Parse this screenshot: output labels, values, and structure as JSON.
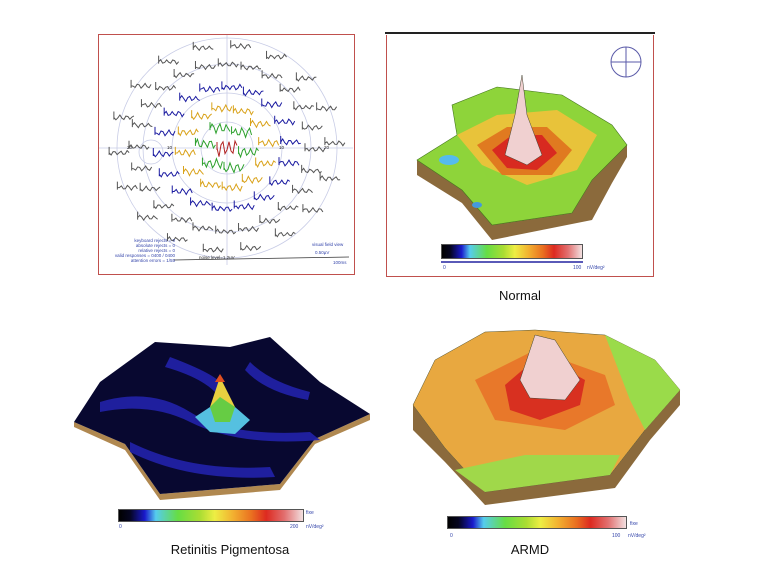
{
  "figure": {
    "panels": [
      {
        "id": "trace-array",
        "type": "mfERG trace array",
        "border_color": "#c0504d",
        "axis_labels": [
          "20",
          "10",
          "10",
          "20"
        ],
        "stats": [
          "keyboard rejects = 0",
          "absolute rejects = 0",
          "relative rejects = 0",
          "valid responses = 0400 / 0400",
          "attention errors = 1/55"
        ],
        "noise_level": "noise level=1.2uV",
        "view_label": "visual field view",
        "scale_amp": "0.50µV",
        "scale_time": "100ms"
      },
      {
        "id": "normal-3d",
        "caption": "Normal",
        "border_color": "#c0504d",
        "colorbar": {
          "min": "0",
          "max": "100",
          "unit": "nV/deg²"
        }
      },
      {
        "id": "rp-3d",
        "caption": "Retinitis Pigmentosa",
        "colorbar": {
          "min": "0",
          "max": "200",
          "unit": "nV/deg²",
          "extra": "fixe"
        }
      },
      {
        "id": "armd-3d",
        "caption": "ARMD",
        "colorbar": {
          "min": "0",
          "max": "100",
          "unit": "nV/deg²",
          "extra": "fixe"
        }
      }
    ],
    "colors": {
      "ring_blue": "#1a1aa0",
      "ring_yellow": "#d9a21a",
      "ring_green": "#2ca02c",
      "center_red": "#b22222",
      "outer_gray": "#555555",
      "base_brown": "#8b6a3c"
    }
  }
}
